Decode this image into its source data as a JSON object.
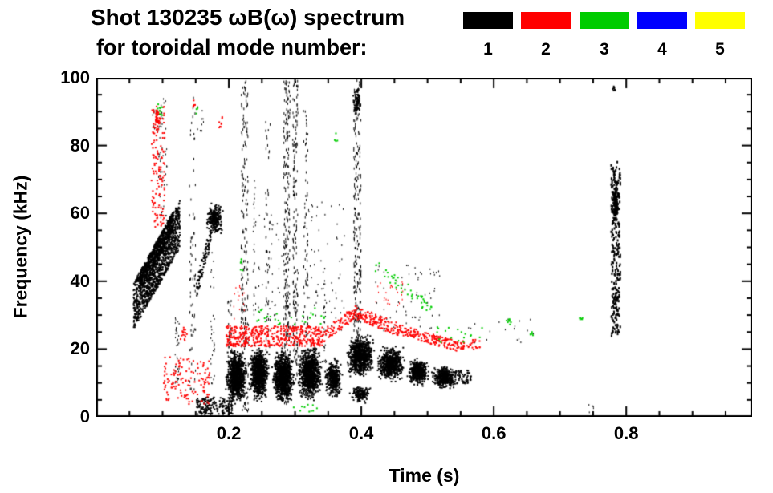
{
  "title": "Shot 130235 ωB(ω) spectrum",
  "subtitle": "for toroidal mode number:",
  "chart_data": {
    "type": "scatter",
    "title": "Shot 130235 ωB(ω) spectrum",
    "subtitle": "for toroidal mode number:",
    "xlabel": "Time (s)",
    "ylabel": "Frequency (kHz)",
    "xlim": [
      0,
      0.99
    ],
    "ylim": [
      0,
      100
    ],
    "xticks": [
      0.2,
      0.4,
      0.6,
      0.8
    ],
    "x_minor_step": 0.05,
    "yticks": [
      0,
      20,
      40,
      60,
      80,
      100
    ],
    "y_minor_step": 5,
    "grid": false,
    "legend_position": "top-right",
    "legend": [
      {
        "label": "1",
        "color": "#000000"
      },
      {
        "label": "2",
        "color": "#ff0000"
      },
      {
        "label": "3",
        "color": "#00cc00"
      },
      {
        "label": "4",
        "color": "#0000ff"
      },
      {
        "label": "5",
        "color": "#ffff00"
      }
    ],
    "series": [
      {
        "name": "1",
        "color": "#000000",
        "features": [
          {
            "s": "diag",
            "t": [
              0.055,
              0.125
            ],
            "f": [
              33,
              57
            ],
            "n": 1200,
            "j": 7,
            "w": 2,
            "h": 2
          },
          {
            "s": "diag",
            "t": [
              0.065,
              0.115
            ],
            "f": [
              40,
              58
            ],
            "n": 500,
            "j": 3,
            "w": 2,
            "h": 2
          },
          {
            "s": "streak",
            "t": [
              0.093,
              0.106
            ],
            "f": [
              58,
              94
            ],
            "n": 50,
            "w": 1,
            "h": 2
          },
          {
            "s": "band",
            "t": [
              0.083,
              0.1
            ],
            "f": [
              83,
              94
            ],
            "n": 15,
            "w": 1,
            "h": 2
          },
          {
            "s": "streak",
            "t": [
              0.118,
              0.125
            ],
            "f": [
              10,
              30
            ],
            "n": 40,
            "w": 1,
            "h": 2
          },
          {
            "s": "streak",
            "t": [
              0.14,
              0.15
            ],
            "f": [
              8,
              95
            ],
            "n": 70,
            "w": 1,
            "h": 3
          },
          {
            "s": "band",
            "t": [
              0.152,
              0.162
            ],
            "f": [
              84,
              92
            ],
            "n": 10,
            "w": 1,
            "h": 2
          },
          {
            "s": "diag",
            "t": [
              0.15,
              0.172
            ],
            "f": [
              38,
              54
            ],
            "n": 100,
            "j": 3,
            "w": 2,
            "h": 2
          },
          {
            "s": "blob",
            "t": [
              0.163,
              0.192
            ],
            "f": [
              53,
              64
            ],
            "n": 260,
            "w": 2,
            "h": 2
          },
          {
            "s": "streak",
            "t": [
              0.172,
              0.178
            ],
            "f": [
              10,
              50
            ],
            "n": 30,
            "w": 1,
            "h": 2
          },
          {
            "s": "band",
            "t": [
              0.15,
              0.205
            ],
            "f": [
              1,
              6
            ],
            "n": 180,
            "w": 2,
            "h": 2
          },
          {
            "s": "streak",
            "t": [
              0.198,
              0.204
            ],
            "f": [
              0,
              35
            ],
            "n": 50,
            "w": 1,
            "h": 3
          },
          {
            "s": "streak",
            "t": [
              0.218,
              0.229
            ],
            "f": [
              2,
              100
            ],
            "n": 220,
            "w": 1,
            "h": 3
          },
          {
            "s": "streak",
            "t": [
              0.236,
              0.241
            ],
            "f": [
              30,
              70
            ],
            "n": 30,
            "w": 1,
            "h": 2
          },
          {
            "s": "band",
            "t": [
              0.24,
              0.285
            ],
            "f": [
              28,
              60
            ],
            "n": 40,
            "w": 1,
            "h": 2
          },
          {
            "s": "streak",
            "t": [
              0.255,
              0.262
            ],
            "f": [
              20,
              88
            ],
            "n": 50,
            "w": 1,
            "h": 3
          },
          {
            "s": "streak",
            "t": [
              0.282,
              0.292
            ],
            "f": [
              4,
              100
            ],
            "n": 260,
            "w": 1,
            "h": 3
          },
          {
            "s": "streak",
            "t": [
              0.296,
              0.304
            ],
            "f": [
              10,
              100
            ],
            "n": 180,
            "w": 1,
            "h": 3
          },
          {
            "s": "streak",
            "t": [
              0.312,
              0.319
            ],
            "f": [
              20,
              92
            ],
            "n": 70,
            "w": 1,
            "h": 3
          },
          {
            "s": "band",
            "t": [
              0.315,
              0.375
            ],
            "f": [
              25,
              65
            ],
            "n": 60,
            "w": 1,
            "h": 2
          },
          {
            "s": "streak",
            "t": [
              0.342,
              0.347
            ],
            "f": [
              15,
              45
            ],
            "n": 30,
            "w": 1,
            "h": 2
          },
          {
            "s": "streak",
            "t": [
              0.388,
              0.399
            ],
            "f": [
              18,
              100
            ],
            "n": 260,
            "w": 1,
            "h": 3
          },
          {
            "s": "blob",
            "t": [
              0.385,
              0.4
            ],
            "f": [
              88,
              98
            ],
            "n": 80,
            "w": 2,
            "h": 2
          },
          {
            "s": "blob",
            "t": [
              0.193,
              0.228
            ],
            "f": [
              3,
              21
            ],
            "n": 900,
            "w": 2,
            "h": 2
          },
          {
            "s": "blob",
            "t": [
              0.228,
              0.262
            ],
            "f": [
              4,
              22
            ],
            "n": 900,
            "w": 2,
            "h": 2
          },
          {
            "s": "blob",
            "t": [
              0.262,
              0.3
            ],
            "f": [
              3,
              21
            ],
            "n": 1000,
            "w": 2,
            "h": 2
          },
          {
            "s": "blob",
            "t": [
              0.3,
              0.342
            ],
            "f": [
              4,
              22
            ],
            "n": 1000,
            "w": 2,
            "h": 2
          },
          {
            "s": "blob",
            "t": [
              0.342,
              0.372
            ],
            "f": [
              5,
              18
            ],
            "n": 400,
            "w": 2,
            "h": 2
          },
          {
            "s": "blob",
            "t": [
              0.375,
              0.42
            ],
            "f": [
              11,
              25
            ],
            "n": 800,
            "w": 2,
            "h": 2
          },
          {
            "s": "blob",
            "t": [
              0.38,
              0.415
            ],
            "f": [
              4,
              10
            ],
            "n": 150,
            "w": 2,
            "h": 2
          },
          {
            "s": "blob",
            "t": [
              0.42,
              0.467
            ],
            "f": [
              10,
              22
            ],
            "n": 650,
            "w": 2,
            "h": 2
          },
          {
            "s": "blob",
            "t": [
              0.467,
              0.503
            ],
            "f": [
              9,
              18
            ],
            "n": 450,
            "w": 2,
            "h": 2
          },
          {
            "s": "blob",
            "t": [
              0.503,
              0.545
            ],
            "f": [
              8,
              16
            ],
            "n": 380,
            "w": 2,
            "h": 2
          },
          {
            "s": "band",
            "t": [
              0.54,
              0.565
            ],
            "f": [
              10,
              14
            ],
            "n": 60,
            "w": 2,
            "h": 2
          },
          {
            "s": "band",
            "t": [
              0.42,
              0.52
            ],
            "f": [
              25,
              45
            ],
            "n": 60,
            "w": 1,
            "h": 2
          },
          {
            "s": "band",
            "t": [
              0.56,
              0.66
            ],
            "f": [
              22,
              30
            ],
            "n": 18,
            "w": 1,
            "h": 2
          },
          {
            "s": "streak",
            "t": [
              0.776,
              0.79
            ],
            "f": [
              24,
              76
            ],
            "n": 260,
            "w": 2,
            "h": 3
          },
          {
            "s": "blob",
            "t": [
              0.777,
              0.789
            ],
            "f": [
              55,
              70
            ],
            "n": 150,
            "w": 2,
            "h": 2
          },
          {
            "s": "blob",
            "t": [
              0.777,
              0.784
            ],
            "f": [
              95,
              99
            ],
            "n": 8,
            "w": 2,
            "h": 2
          },
          {
            "s": "band",
            "t": [
              0.742,
              0.752
            ],
            "f": [
              1,
              4
            ],
            "n": 5,
            "w": 1,
            "h": 2
          }
        ]
      },
      {
        "name": "2",
        "color": "#ff0000",
        "features": [
          {
            "s": "streak",
            "t": [
              0.082,
              0.102
            ],
            "f": [
              56,
              92
            ],
            "n": 130,
            "w": 2,
            "h": 2
          },
          {
            "s": "blob",
            "t": [
              0.084,
              0.098
            ],
            "f": [
              84,
              92
            ],
            "n": 40,
            "w": 2,
            "h": 2
          },
          {
            "s": "band",
            "t": [
              0.1,
              0.17
            ],
            "f": [
              4,
              18
            ],
            "n": 130,
            "w": 2,
            "h": 2
          },
          {
            "s": "blob",
            "t": [
              0.125,
              0.14
            ],
            "f": [
              22,
              27
            ],
            "n": 15,
            "w": 2,
            "h": 2
          },
          {
            "s": "blob",
            "t": [
              0.142,
              0.15
            ],
            "f": [
              90,
              95
            ],
            "n": 6,
            "w": 2,
            "h": 2
          },
          {
            "s": "blob",
            "t": [
              0.182,
              0.192
            ],
            "f": [
              84,
              90
            ],
            "n": 8,
            "w": 2,
            "h": 2
          },
          {
            "s": "band",
            "t": [
              0.195,
              0.34
            ],
            "f": [
              21,
              27
            ],
            "n": 450,
            "w": 2,
            "h": 2
          },
          {
            "s": "band",
            "t": [
              0.205,
              0.225
            ],
            "f": [
              28,
              40
            ],
            "n": 15,
            "w": 1,
            "h": 2
          },
          {
            "s": "diag",
            "t": [
              0.34,
              0.39
            ],
            "f": [
              24,
              31
            ],
            "n": 90,
            "j": 2,
            "w": 2,
            "h": 2
          },
          {
            "s": "diag",
            "t": [
              0.39,
              0.455
            ],
            "f": [
              31,
              26
            ],
            "n": 130,
            "j": 2,
            "w": 2,
            "h": 2
          },
          {
            "s": "band",
            "t": [
              0.42,
              0.47
            ],
            "f": [
              33,
              40
            ],
            "n": 25,
            "w": 1,
            "h": 2
          },
          {
            "s": "diag",
            "t": [
              0.455,
              0.545
            ],
            "f": [
              26,
              21
            ],
            "n": 160,
            "j": 1.5,
            "w": 2,
            "h": 2
          },
          {
            "s": "band",
            "t": [
              0.545,
              0.58
            ],
            "f": [
              20,
              23
            ],
            "n": 35,
            "w": 2,
            "h": 2
          }
        ]
      },
      {
        "name": "3",
        "color": "#00cc00",
        "features": [
          {
            "s": "blob",
            "t": [
              0.09,
              0.1
            ],
            "f": [
              88,
              93
            ],
            "n": 10,
            "w": 2,
            "h": 2
          },
          {
            "s": "blob",
            "t": [
              0.148,
              0.155
            ],
            "f": [
              89,
              93
            ],
            "n": 4,
            "w": 2,
            "h": 2
          },
          {
            "s": "blob",
            "t": [
              0.213,
              0.22
            ],
            "f": [
              42,
              48
            ],
            "n": 6,
            "w": 2,
            "h": 2
          },
          {
            "s": "band",
            "t": [
              0.24,
              0.345
            ],
            "f": [
              27,
              33
            ],
            "n": 28,
            "w": 2,
            "h": 2
          },
          {
            "s": "band",
            "t": [
              0.29,
              0.335
            ],
            "f": [
              1,
              4
            ],
            "n": 10,
            "w": 2,
            "h": 2
          },
          {
            "s": "blob",
            "t": [
              0.357,
              0.365
            ],
            "f": [
              80,
              85
            ],
            "n": 4,
            "w": 2,
            "h": 2
          },
          {
            "s": "diag",
            "t": [
              0.42,
              0.505
            ],
            "f": [
              45,
              32
            ],
            "n": 45,
            "j": 2,
            "w": 2,
            "h": 2
          },
          {
            "s": "band",
            "t": [
              0.505,
              0.585
            ],
            "f": [
              22,
              27
            ],
            "n": 18,
            "w": 2,
            "h": 2
          },
          {
            "s": "blob",
            "t": [
              0.615,
              0.63
            ],
            "f": [
              26,
              30
            ],
            "n": 8,
            "w": 2,
            "h": 2
          },
          {
            "s": "blob",
            "t": [
              0.65,
              0.662
            ],
            "f": [
              23,
              26
            ],
            "n": 5,
            "w": 2,
            "h": 2
          },
          {
            "s": "blob",
            "t": [
              0.726,
              0.736
            ],
            "f": [
              28,
              31
            ],
            "n": 6,
            "w": 2,
            "h": 2
          }
        ]
      },
      {
        "name": "4",
        "color": "#0000ff",
        "features": []
      },
      {
        "name": "5",
        "color": "#ffff00",
        "features": []
      }
    ]
  }
}
